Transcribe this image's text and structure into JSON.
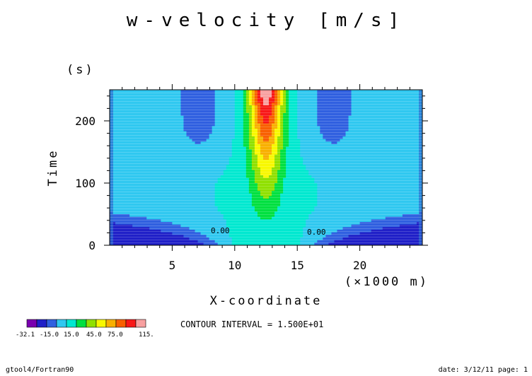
{
  "chart_data": {
    "type": "heatmap",
    "title": "w-velocity [m/s]",
    "xlabel": "X-coordinate",
    "xunit": "(×1000 m)",
    "ylabel": "Time",
    "yunit": "(s)",
    "xlim": [
      0,
      25
    ],
    "ylim": [
      0,
      250
    ],
    "x_ticks": [
      "5",
      "10",
      "15",
      "20"
    ],
    "x_tick_values": [
      5,
      10,
      15,
      20
    ],
    "y_ticks": [
      "0",
      "100",
      "200"
    ],
    "y_tick_values": [
      0,
      100,
      200
    ],
    "contour_levels": [
      -30,
      -15,
      0,
      15,
      30,
      45,
      60,
      75,
      90,
      105
    ],
    "contour_label_text": "0.00",
    "contour_interval_text": "CONTOUR INTERVAL = 1.500E+01",
    "colorbar": {
      "colors": [
        "#7a00b0",
        "#2020c8",
        "#3060e0",
        "#30c8f0",
        "#00e8d0",
        "#00e040",
        "#90e000",
        "#f8f800",
        "#f8b000",
        "#f86000",
        "#f81818",
        "#f8a0a0"
      ],
      "labels": [
        "-32.1",
        "-15.0",
        "15.0",
        "45.0",
        "75.0",
        "115."
      ]
    },
    "background_color": "#3a8ef0",
    "grid": false
  },
  "footer": {
    "left": "gtool4/Fortran90",
    "right": "date: 3/12/11 page: 1"
  }
}
